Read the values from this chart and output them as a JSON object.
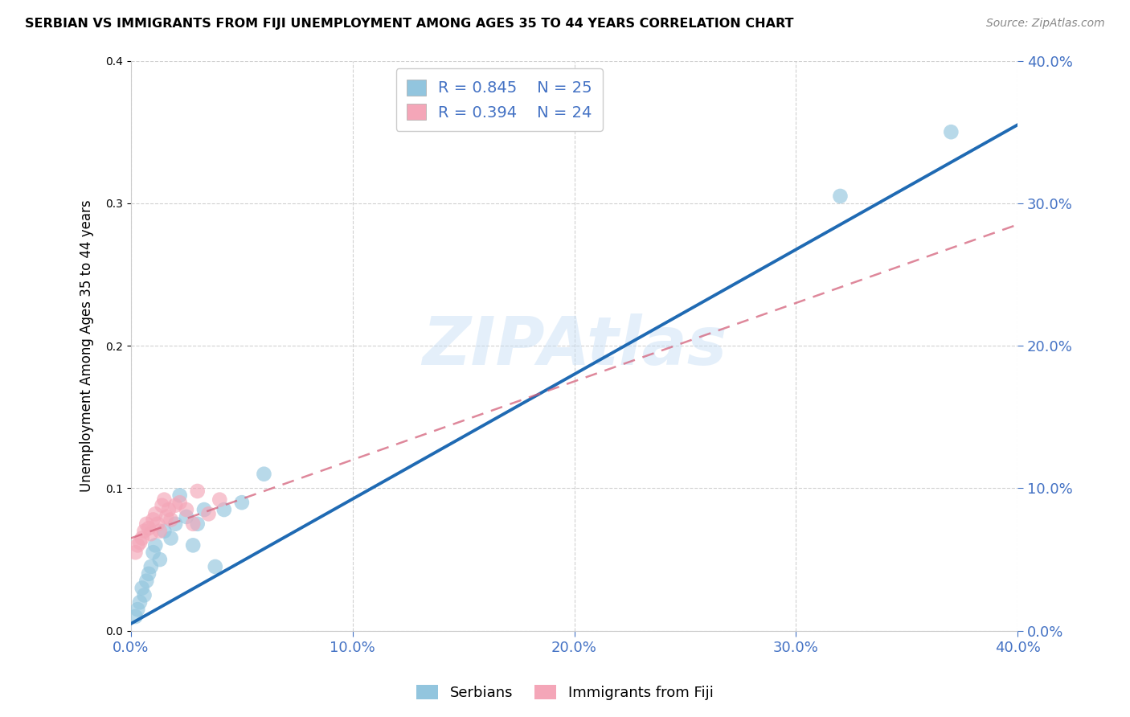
{
  "title": "SERBIAN VS IMMIGRANTS FROM FIJI UNEMPLOYMENT AMONG AGES 35 TO 44 YEARS CORRELATION CHART",
  "source": "Source: ZipAtlas.com",
  "ylabel": "Unemployment Among Ages 35 to 44 years",
  "xlim": [
    0.0,
    0.4
  ],
  "ylim": [
    0.0,
    0.4
  ],
  "watermark_text": "ZIPAtlas",
  "legend_r1": "R = 0.845",
  "legend_n1": "N = 25",
  "legend_r2": "R = 0.394",
  "legend_n2": "N = 24",
  "blue_color": "#92c5de",
  "pink_color": "#f4a6b8",
  "line_blue": "#1f6ab3",
  "line_pink": "#d4607a",
  "serbians_x": [
    0.002,
    0.003,
    0.004,
    0.005,
    0.006,
    0.007,
    0.008,
    0.009,
    0.01,
    0.011,
    0.013,
    0.015,
    0.018,
    0.02,
    0.022,
    0.025,
    0.028,
    0.03,
    0.033,
    0.038,
    0.042,
    0.05,
    0.06,
    0.32,
    0.37
  ],
  "serbians_y": [
    0.01,
    0.015,
    0.02,
    0.03,
    0.025,
    0.035,
    0.04,
    0.045,
    0.055,
    0.06,
    0.05,
    0.07,
    0.065,
    0.075,
    0.095,
    0.08,
    0.06,
    0.075,
    0.085,
    0.045,
    0.085,
    0.09,
    0.11,
    0.305,
    0.35
  ],
  "fiji_x": [
    0.002,
    0.003,
    0.004,
    0.005,
    0.006,
    0.007,
    0.008,
    0.009,
    0.01,
    0.011,
    0.012,
    0.013,
    0.014,
    0.015,
    0.016,
    0.017,
    0.018,
    0.02,
    0.022,
    0.025,
    0.028,
    0.03,
    0.035,
    0.04
  ],
  "fiji_y": [
    0.055,
    0.06,
    0.062,
    0.065,
    0.07,
    0.075,
    0.072,
    0.068,
    0.078,
    0.082,
    0.075,
    0.07,
    0.088,
    0.092,
    0.08,
    0.085,
    0.078,
    0.088,
    0.09,
    0.085,
    0.075,
    0.098,
    0.082,
    0.092
  ],
  "blue_line_x0": 0.0,
  "blue_line_y0": 0.005,
  "blue_line_x1": 0.4,
  "blue_line_y1": 0.355,
  "pink_line_x0": 0.0,
  "pink_line_y0": 0.065,
  "pink_line_x1": 0.4,
  "pink_line_y1": 0.285,
  "background_color": "#ffffff",
  "grid_color": "#cccccc",
  "tick_label_color": "#4472c4"
}
